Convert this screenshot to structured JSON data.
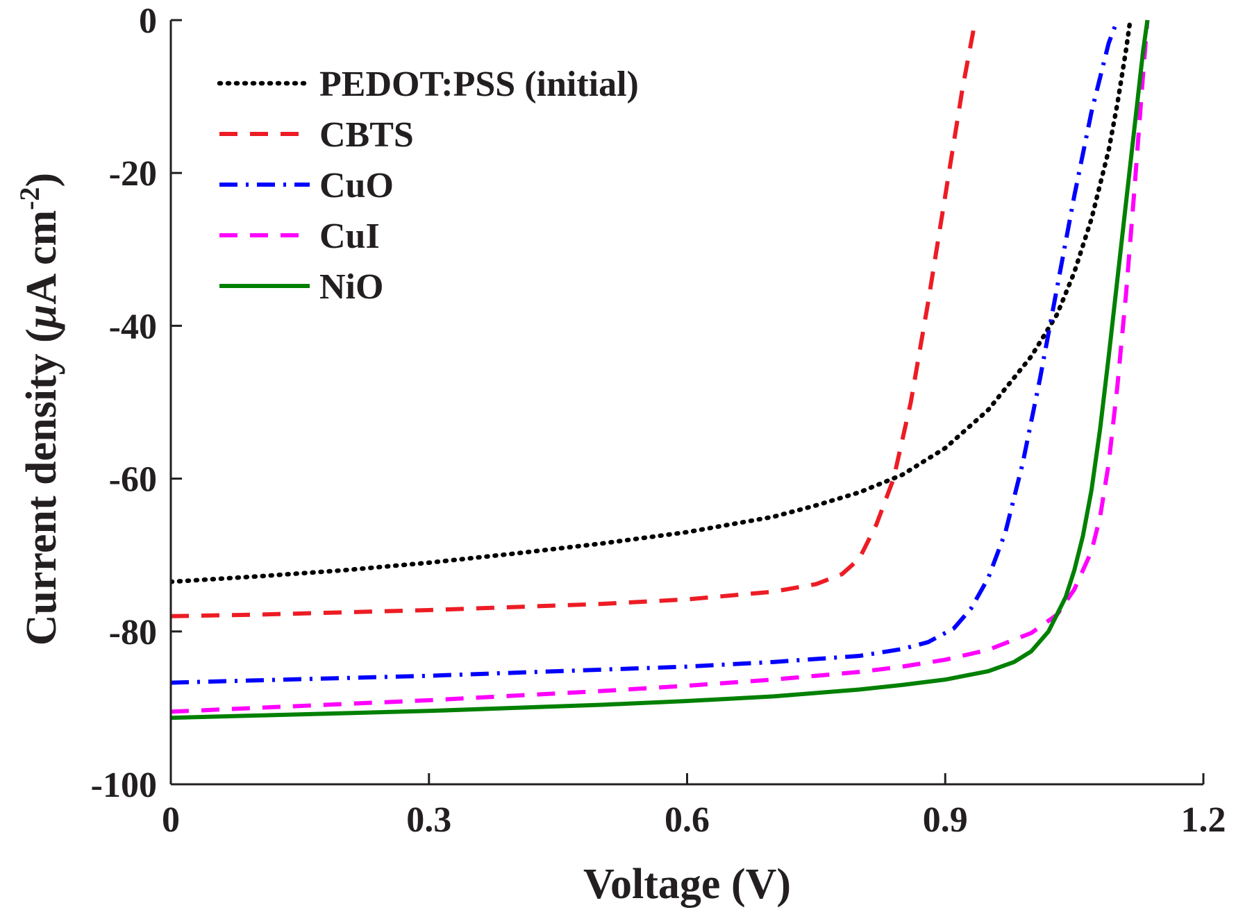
{
  "chart_data": {
    "type": "line",
    "title": "",
    "xlabel": "Voltage (V)",
    "ylabel_prefix": "Current density (",
    "ylabel_mu": "μ",
    "ylabel_unit": "A cm",
    "ylabel_exp": "-2",
    "ylabel_suffix": ")",
    "xlim": [
      0,
      1.2
    ],
    "ylim": [
      -100,
      0
    ],
    "xticks": [
      0,
      0.3,
      0.6,
      0.9,
      1.2
    ],
    "xtick_labels": [
      "0",
      "0.3",
      "0.6",
      "0.9",
      "1.2"
    ],
    "yticks": [
      0,
      -20,
      -40,
      -60,
      -80,
      -100
    ],
    "ytick_labels": [
      "0",
      "-20",
      "-40",
      "-60",
      "-80",
      "-100"
    ],
    "grid": false,
    "legend_position": "top-left",
    "series": [
      {
        "name": "PEDOT:PSS (initial)",
        "color": "#000000",
        "style": "dotted",
        "x": [
          0,
          0.1,
          0.2,
          0.3,
          0.4,
          0.5,
          0.6,
          0.7,
          0.75,
          0.8,
          0.85,
          0.9,
          0.95,
          1.0,
          1.03,
          1.05,
          1.07,
          1.09,
          1.1,
          1.11,
          1.115
        ],
        "y": [
          -73.5,
          -72.8,
          -72.0,
          -71.0,
          -69.8,
          -68.5,
          -67.0,
          -65.0,
          -63.5,
          -61.8,
          -59.5,
          -56.0,
          -51.0,
          -44.0,
          -38.5,
          -33.0,
          -26.0,
          -17.0,
          -11.0,
          -4.0,
          0
        ]
      },
      {
        "name": "CBTS",
        "color": "#ed1c24",
        "style": "dashed",
        "x": [
          0,
          0.1,
          0.2,
          0.3,
          0.4,
          0.5,
          0.6,
          0.7,
          0.75,
          0.78,
          0.8,
          0.82,
          0.84,
          0.86,
          0.88,
          0.9,
          0.92,
          0.935
        ],
        "y": [
          -78.0,
          -77.8,
          -77.5,
          -77.2,
          -76.8,
          -76.4,
          -75.8,
          -74.8,
          -73.8,
          -72.5,
          -70.5,
          -66.0,
          -60.0,
          -50.0,
          -37.0,
          -23.0,
          -9.0,
          0
        ]
      },
      {
        "name": "CuO",
        "color": "#0000ff",
        "style": "dashdot",
        "x": [
          0,
          0.1,
          0.2,
          0.3,
          0.4,
          0.5,
          0.6,
          0.7,
          0.8,
          0.85,
          0.88,
          0.91,
          0.93,
          0.95,
          0.97,
          0.99,
          1.01,
          1.03,
          1.05,
          1.07,
          1.09,
          1.1
        ],
        "y": [
          -86.7,
          -86.4,
          -86.1,
          -85.8,
          -85.4,
          -85.0,
          -84.6,
          -84.0,
          -83.2,
          -82.3,
          -81.4,
          -79.6,
          -77.0,
          -73.0,
          -67.0,
          -58.0,
          -47.0,
          -35.0,
          -23.0,
          -12.0,
          -3.0,
          0
        ]
      },
      {
        "name": "CuI",
        "color": "#ff00ff",
        "style": "dashed",
        "x": [
          0,
          0.1,
          0.2,
          0.3,
          0.4,
          0.5,
          0.6,
          0.7,
          0.8,
          0.85,
          0.9,
          0.95,
          1.0,
          1.03,
          1.05,
          1.07,
          1.08,
          1.09,
          1.1,
          1.11,
          1.12,
          1.13,
          1.135
        ],
        "y": [
          -90.5,
          -90.0,
          -89.5,
          -89.0,
          -88.4,
          -87.8,
          -87.1,
          -86.3,
          -85.3,
          -84.6,
          -83.7,
          -82.4,
          -80.2,
          -77.8,
          -74.5,
          -69.5,
          -65.0,
          -58.0,
          -48.0,
          -36.0,
          -22.0,
          -7.0,
          0
        ]
      },
      {
        "name": "NiO",
        "color": "#008000",
        "style": "solid",
        "x": [
          0,
          0.1,
          0.2,
          0.3,
          0.4,
          0.5,
          0.6,
          0.7,
          0.8,
          0.85,
          0.9,
          0.95,
          0.98,
          1.0,
          1.02,
          1.04,
          1.05,
          1.06,
          1.07,
          1.08,
          1.09,
          1.1,
          1.11,
          1.12,
          1.13,
          1.135
        ],
        "y": [
          -91.3,
          -91.0,
          -90.7,
          -90.4,
          -90.0,
          -89.6,
          -89.1,
          -88.5,
          -87.6,
          -87.0,
          -86.3,
          -85.2,
          -84.0,
          -82.6,
          -80.0,
          -75.5,
          -72.0,
          -67.5,
          -61.5,
          -53.5,
          -44.0,
          -34.0,
          -24.0,
          -14.0,
          -4.0,
          0
        ]
      }
    ]
  }
}
